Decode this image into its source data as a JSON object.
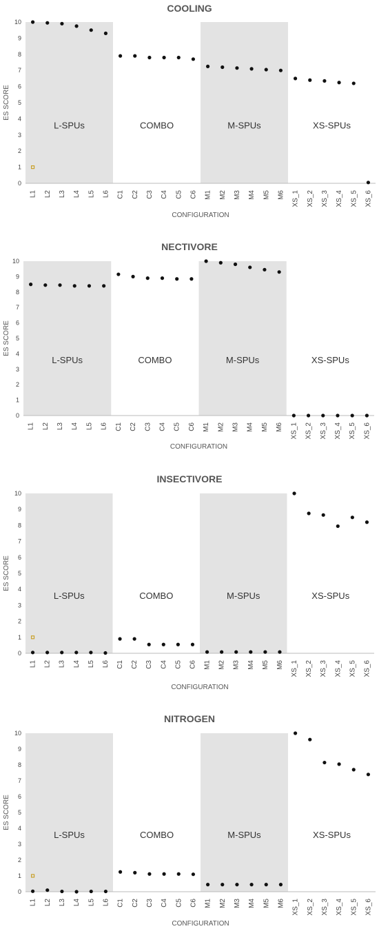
{
  "chart_data": [
    {
      "type": "scatter",
      "title": "COOLING",
      "xlabel": "CONFIGURATION",
      "ylabel": "ES SCORE",
      "ylim": [
        0,
        10
      ],
      "yticks": [
        0,
        1,
        2,
        3,
        4,
        5,
        6,
        7,
        8,
        9,
        10
      ],
      "grid": false,
      "categories": [
        "L1",
        "L2",
        "L3",
        "L4",
        "L5",
        "L6",
        "C1",
        "C2",
        "C3",
        "C4",
        "C5",
        "C6",
        "M1",
        "M2",
        "M3",
        "M4",
        "M5",
        "M6",
        "XS_1",
        "XS_2",
        "XS_3",
        "XS_4",
        "XS_5",
        "XS_6"
      ],
      "bands": [
        {
          "label": "L-SPUs",
          "shaded": true
        },
        {
          "label": "COMBO",
          "shaded": false
        },
        {
          "label": "M-SPUs",
          "shaded": true
        },
        {
          "label": "XS-SPUs",
          "shaded": false
        }
      ],
      "values": [
        10,
        9.95,
        9.9,
        9.75,
        9.5,
        9.3,
        7.9,
        7.9,
        7.8,
        7.8,
        7.8,
        7.7,
        7.25,
        7.2,
        7.15,
        7.1,
        7.05,
        7.0,
        6.5,
        6.4,
        6.35,
        6.25,
        6.2,
        0.05
      ],
      "marker": {
        "category": "L1",
        "value": 1
      }
    },
    {
      "type": "scatter",
      "title": "NECTIVORE",
      "xlabel": "CONFIGURATION",
      "ylabel": "ES SCORE",
      "ylim": [
        0,
        10
      ],
      "yticks": [
        0,
        1,
        2,
        3,
        4,
        5,
        6,
        7,
        8,
        9,
        10
      ],
      "grid": false,
      "categories": [
        "L1",
        "L2",
        "L3",
        "L4",
        "L5",
        "L6",
        "C1",
        "C2",
        "C3",
        "C4",
        "C5",
        "C6",
        "M1",
        "M2",
        "M3",
        "M4",
        "M5",
        "M6",
        "XS_1",
        "XS_2",
        "XS_3",
        "XS_4",
        "XS_5",
        "XS_6"
      ],
      "bands": [
        {
          "label": "L-SPUs",
          "shaded": true
        },
        {
          "label": "COMBO",
          "shaded": false
        },
        {
          "label": "M-SPUs",
          "shaded": true
        },
        {
          "label": "XS-SPUs",
          "shaded": false
        }
      ],
      "values": [
        8.5,
        8.45,
        8.45,
        8.4,
        8.4,
        8.4,
        9.15,
        9.0,
        8.9,
        8.9,
        8.85,
        8.85,
        10,
        9.9,
        9.8,
        9.6,
        9.45,
        9.3,
        0,
        0,
        0,
        0,
        0,
        0
      ]
    },
    {
      "type": "scatter",
      "title": "INSECTIVORE",
      "xlabel": "CONFIGURATION",
      "ylabel": "ES SCORE",
      "ylim": [
        0,
        10
      ],
      "yticks": [
        0,
        1,
        2,
        3,
        4,
        5,
        6,
        7,
        8,
        9,
        10
      ],
      "grid": false,
      "categories": [
        "L1",
        "L2",
        "L3",
        "L4",
        "L5",
        "L6",
        "C1",
        "C2",
        "C3",
        "C4",
        "C5",
        "C6",
        "M1",
        "M2",
        "M3",
        "M4",
        "M5",
        "M6",
        "XS_1",
        "XS_2",
        "XS_3",
        "XS_4",
        "XS_5",
        "XS_6"
      ],
      "bands": [
        {
          "label": "L-SPUs",
          "shaded": true
        },
        {
          "label": "COMBO",
          "shaded": false
        },
        {
          "label": "M-SPUs",
          "shaded": true
        },
        {
          "label": "XS-SPUs",
          "shaded": false
        }
      ],
      "values": [
        0.05,
        0.05,
        0.05,
        0.05,
        0.05,
        0.02,
        0.9,
        0.9,
        0.55,
        0.55,
        0.55,
        0.55,
        0.08,
        0.08,
        0.08,
        0.08,
        0.08,
        0.08,
        10,
        8.75,
        8.65,
        7.95,
        8.5,
        8.2
      ],
      "marker": {
        "category": "L1",
        "value": 1
      }
    },
    {
      "type": "scatter",
      "title": "NITROGEN",
      "xlabel": "CONFIGURATION",
      "ylabel": "ES SCORE",
      "ylim": [
        0,
        10
      ],
      "yticks": [
        0,
        1,
        2,
        3,
        4,
        5,
        6,
        7,
        8,
        9,
        10
      ],
      "grid": false,
      "categories": [
        "L1",
        "L2",
        "L3",
        "L4",
        "L5",
        "L6",
        "C1",
        "C2",
        "C3",
        "C4",
        "C5",
        "C6",
        "M1",
        "M2",
        "M3",
        "M4",
        "M5",
        "M6",
        "XS_1",
        "XS_2",
        "XS_3",
        "XS_4",
        "XS_5",
        "XS_6"
      ],
      "bands": [
        {
          "label": "L-SPUs",
          "shaded": true
        },
        {
          "label": "COMBO",
          "shaded": false
        },
        {
          "label": "M-SPUs",
          "shaded": true
        },
        {
          "label": "XS-SPUs",
          "shaded": false
        }
      ],
      "values": [
        0.03,
        0.1,
        0.02,
        0.0,
        0.02,
        0.02,
        1.25,
        1.2,
        1.12,
        1.12,
        1.12,
        1.1,
        0.45,
        0.45,
        0.45,
        0.45,
        0.45,
        0.45,
        10,
        9.6,
        8.15,
        8.05,
        7.7,
        7.4
      ],
      "marker": {
        "category": "L1",
        "value": 1
      }
    }
  ],
  "colors": {
    "band_shade": "#e3e3e3",
    "point": "#111111",
    "marker": "#c9a12b",
    "axis": "#bbbbbb"
  }
}
